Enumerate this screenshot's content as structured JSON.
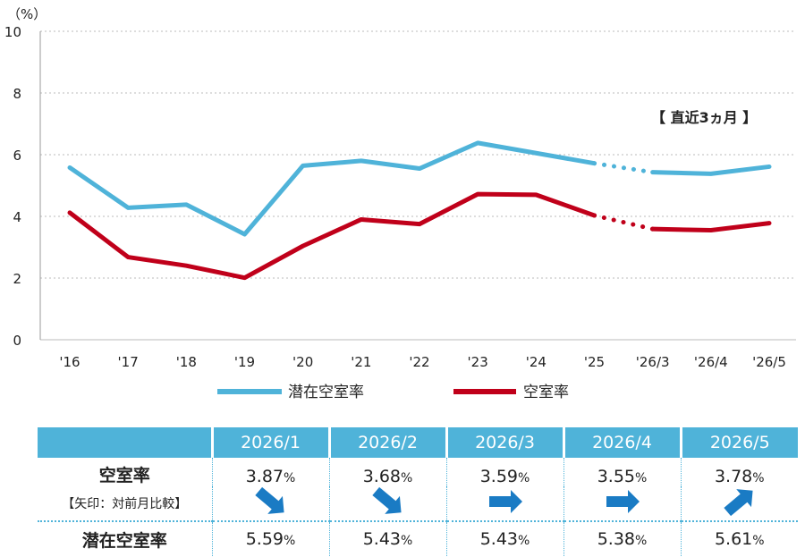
{
  "chart_data": {
    "type": "line",
    "ylabel": "（%）",
    "ylim": [
      0,
      10
    ],
    "yticks": [
      "0",
      "2",
      "4",
      "6",
      "8",
      "10"
    ],
    "categories": [
      "'16",
      "'17",
      "'18",
      "'19",
      "'20",
      "'21",
      "'22",
      "'23",
      "'24",
      "'25",
      "'26/3",
      "'26/4",
      "'26/5"
    ],
    "series": [
      {
        "name": "潜在空室率",
        "color": "#4fb3d9",
        "values": [
          5.58,
          4.28,
          4.38,
          3.42,
          5.64,
          5.8,
          5.55,
          6.38,
          6.05,
          5.72,
          5.43,
          5.38,
          5.61
        ]
      },
      {
        "name": "空室率",
        "color": "#c0001a",
        "values": [
          4.12,
          2.68,
          2.4,
          2.01,
          3.04,
          3.9,
          3.75,
          4.72,
          4.7,
          4.03,
          3.59,
          3.55,
          3.78
        ]
      }
    ],
    "dashed_between": [
      "'25",
      "'26/3"
    ],
    "annotation": "【 直近3ヵ月 】",
    "grid": "horizontal dotted",
    "legend_position": "bottom"
  },
  "table": {
    "headers": [
      "",
      "2026/1",
      "2026/2",
      "2026/3",
      "2026/4",
      "2026/5"
    ],
    "vacancy_label": "空室率",
    "arrow_label": "【矢印：対前月比較】",
    "potential_label": "潜在空室率",
    "vacancy_values": [
      "3.87",
      "3.68",
      "3.59",
      "3.55",
      "3.78"
    ],
    "potential_values": [
      "5.59",
      "5.43",
      "5.43",
      "5.38",
      "5.61"
    ],
    "percent_sign": "%",
    "arrows": [
      "down",
      "down",
      "flat",
      "flat",
      "up"
    ],
    "arrow_color": "#1a7bc4"
  }
}
